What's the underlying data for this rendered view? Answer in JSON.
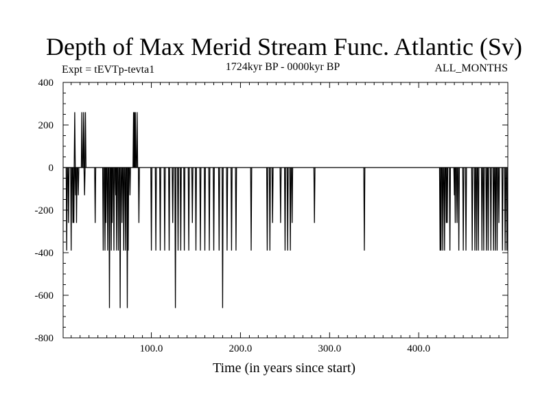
{
  "chart_data": {
    "type": "line",
    "title": "Depth of Max Merid Stream Func. Atlantic (Sv)",
    "subtitle_left": "Expt = tEVTp-tevta1",
    "subtitle_center": "1724kyr BP - 0000kyr BP",
    "subtitle_right": "ALL_MONTHS",
    "xlabel": "Time (in years since start)",
    "ylabel": "",
    "xlim": [
      1,
      500
    ],
    "ylim": [
      -800,
      400
    ],
    "x_ticks": [
      100,
      200,
      300,
      400
    ],
    "x_tick_labels": [
      "100.0",
      "200.0",
      "300.0",
      "400.0"
    ],
    "y_ticks": [
      400,
      200,
      0,
      -200,
      -400,
      -600,
      -800
    ],
    "y_tick_labels": [
      "400",
      "200",
      "0",
      "-200",
      "-400",
      "-600",
      "-800"
    ],
    "grid": false,
    "series": [
      {
        "name": "Depth of Max Merid Stream Func. Atlantic",
        "spikes": [
          [
            5,
            -390
          ],
          [
            7,
            -260
          ],
          [
            10,
            -390
          ],
          [
            12,
            -260
          ],
          [
            13,
            -260
          ],
          [
            14,
            260
          ],
          [
            15,
            -130
          ],
          [
            16,
            -260
          ],
          [
            18,
            -130
          ],
          [
            22,
            260
          ],
          [
            24,
            260
          ],
          [
            25,
            -130
          ],
          [
            26,
            260
          ],
          [
            37,
            -260
          ],
          [
            46,
            -390
          ],
          [
            48,
            -390
          ],
          [
            49,
            -260
          ],
          [
            51,
            -390
          ],
          [
            53,
            -660
          ],
          [
            55,
            -390
          ],
          [
            56,
            -260
          ],
          [
            58,
            -390
          ],
          [
            60,
            -130
          ],
          [
            61,
            -390
          ],
          [
            63,
            -390
          ],
          [
            65,
            -660
          ],
          [
            67,
            -260
          ],
          [
            69,
            -390
          ],
          [
            71,
            -390
          ],
          [
            73,
            -660
          ],
          [
            74,
            -390
          ],
          [
            76,
            -130
          ],
          [
            80,
            260
          ],
          [
            81,
            260
          ],
          [
            82,
            260
          ],
          [
            84,
            260
          ],
          [
            86,
            -260
          ],
          [
            100,
            -390
          ],
          [
            105,
            -390
          ],
          [
            110,
            -390
          ],
          [
            115,
            -390
          ],
          [
            120,
            -390
          ],
          [
            124,
            -260
          ],
          [
            127,
            -660
          ],
          [
            130,
            -390
          ],
          [
            133,
            -390
          ],
          [
            137,
            -390
          ],
          [
            142,
            -390
          ],
          [
            146,
            -260
          ],
          [
            150,
            -390
          ],
          [
            155,
            -390
          ],
          [
            160,
            -390
          ],
          [
            165,
            -390
          ],
          [
            170,
            -390
          ],
          [
            176,
            -390
          ],
          [
            180,
            -660
          ],
          [
            185,
            -390
          ],
          [
            190,
            -390
          ],
          [
            195,
            -390
          ],
          [
            212,
            -390
          ],
          [
            230,
            -390
          ],
          [
            233,
            -390
          ],
          [
            236,
            -260
          ],
          [
            245,
            -260
          ],
          [
            250,
            -390
          ],
          [
            253,
            -390
          ],
          [
            256,
            -390
          ],
          [
            258,
            -260
          ],
          [
            283,
            -260
          ],
          [
            339,
            -390
          ],
          [
            424,
            -390
          ],
          [
            425,
            -390
          ],
          [
            427,
            -390
          ],
          [
            429,
            -390
          ],
          [
            431,
            -260
          ],
          [
            432,
            -260
          ],
          [
            435,
            -390
          ],
          [
            440,
            -130
          ],
          [
            441,
            -260
          ],
          [
            443,
            -260
          ],
          [
            445,
            -390
          ],
          [
            450,
            -390
          ],
          [
            453,
            -390
          ],
          [
            460,
            -390
          ],
          [
            463,
            -390
          ],
          [
            465,
            -390
          ],
          [
            467,
            -390
          ],
          [
            471,
            -390
          ],
          [
            473,
            -390
          ],
          [
            476,
            -390
          ],
          [
            478,
            -390
          ],
          [
            481,
            -390
          ],
          [
            484,
            -390
          ],
          [
            486,
            -390
          ],
          [
            488,
            -390
          ],
          [
            490,
            -260
          ],
          [
            494,
            -390
          ],
          [
            497,
            -390
          ],
          [
            499,
            -390
          ]
        ]
      }
    ]
  }
}
